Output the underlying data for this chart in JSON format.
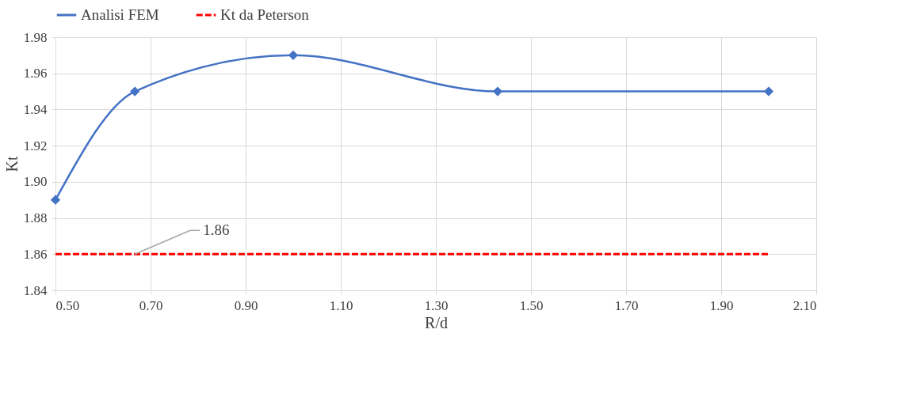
{
  "chart_data": {
    "type": "line",
    "xlabel": "R/d",
    "ylabel": "Kt",
    "series": [
      {
        "name": "Analisi FEM",
        "color": "#4472c4",
        "x": [
          0.5,
          0.667,
          1.0,
          1.43,
          2.0
        ],
        "values": [
          1.89,
          1.95,
          1.97,
          1.95,
          1.95
        ],
        "marker": "diamond",
        "line_style": "solid"
      },
      {
        "name": "Kt da Peterson",
        "color": "#ff0000",
        "x": [
          0.5,
          2.0
        ],
        "values": [
          1.86,
          1.86
        ],
        "marker": "none",
        "line_style": "dashed"
      }
    ],
    "xlim": [
      0.5,
      2.1
    ],
    "xticks": [
      {
        "value": 0.5,
        "label": "0.50"
      },
      {
        "value": 0.7,
        "label": "0.70"
      },
      {
        "value": 0.9,
        "label": "0.90"
      },
      {
        "value": 1.1,
        "label": "1.10"
      },
      {
        "value": 1.3,
        "label": "1.30"
      },
      {
        "value": 1.5,
        "label": "1.50"
      },
      {
        "value": 1.7,
        "label": "1.70"
      },
      {
        "value": 1.9,
        "label": "1.90"
      },
      {
        "value": 2.1,
        "label": "2.10"
      }
    ],
    "ylim": [
      1.84,
      1.98
    ],
    "yticks": [
      {
        "value": 1.84,
        "label": "1.84"
      },
      {
        "value": 1.86,
        "label": "1.86"
      },
      {
        "value": 1.88,
        "label": "1.88"
      },
      {
        "value": 1.9,
        "label": "1.90"
      },
      {
        "value": 1.92,
        "label": "1.92"
      },
      {
        "value": 1.94,
        "label": "1.94"
      },
      {
        "value": 1.96,
        "label": "1.96"
      },
      {
        "value": 1.98,
        "label": "1.98"
      }
    ],
    "annotations": [
      {
        "text": "1.86",
        "x": 0.667,
        "y": 1.86
      }
    ],
    "grid": true,
    "legend": "top"
  }
}
